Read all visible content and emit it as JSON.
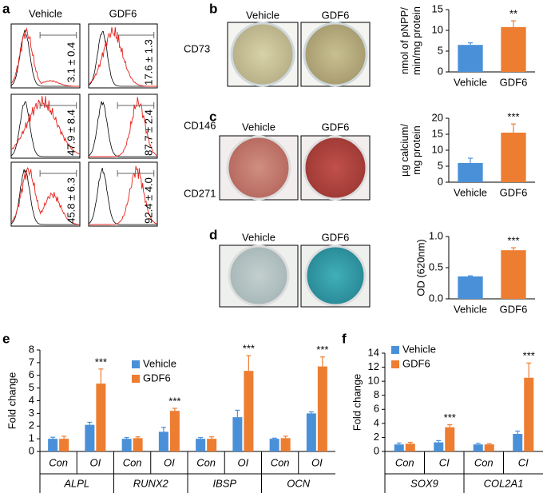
{
  "panel_labels": [
    "a",
    "b",
    "c",
    "d",
    "e",
    "f"
  ],
  "flow": {
    "columns": [
      "Vehicle",
      "GDF6"
    ],
    "markers": [
      "CD73",
      "CD146",
      "CD271"
    ],
    "values": [
      [
        "3.1 ± 0.4",
        "17.6 ± 1.3"
      ],
      [
        "47.9 ± 8.4",
        "87.7 ± 2.4"
      ],
      [
        "45.8 ± 6.3",
        "92.4 ± 4.0"
      ]
    ]
  },
  "stain_labels": [
    [
      "Vehicle",
      "GDF6"
    ],
    [
      "Vehicle",
      "GDF6"
    ],
    [
      "Vehicle",
      "GDF6"
    ]
  ],
  "chart_data": [
    {
      "type": "bar",
      "y_label": [
        "nmol of pNPP/",
        "min/mg protein"
      ],
      "categories": [
        "Vehicle",
        "GDF6"
      ],
      "values": [
        6.5,
        10.8
      ],
      "errors": [
        0.5,
        1.5
      ],
      "colors": [
        "#4a90d9",
        "#ed7d31"
      ],
      "significance": [
        {
          "index": 1,
          "label": "**"
        }
      ],
      "ylim": [
        0,
        15
      ],
      "yticks": [
        0,
        5,
        10,
        15
      ]
    },
    {
      "type": "bar",
      "y_label": [
        "µg calcium/",
        "mg protein"
      ],
      "categories": [
        "Vehicle",
        "GDF6"
      ],
      "values": [
        6.0,
        15.5
      ],
      "errors": [
        1.5,
        2.7
      ],
      "colors": [
        "#4a90d9",
        "#ed7d31"
      ],
      "significance": [
        {
          "index": 1,
          "label": "***"
        }
      ],
      "ylim": [
        0,
        20
      ],
      "yticks": [
        0,
        5,
        10,
        15,
        20
      ]
    },
    {
      "type": "bar",
      "y_label": [
        "OD (620nm)"
      ],
      "categories": [
        "Vehicle",
        "GDF6"
      ],
      "values": [
        0.36,
        0.78
      ],
      "errors": [
        0.01,
        0.04
      ],
      "colors": [
        "#4a90d9",
        "#ed7d31"
      ],
      "significance": [
        {
          "index": 1,
          "label": "***"
        }
      ],
      "ylim": [
        0,
        1
      ],
      "yticks": [
        {
          "value": 0,
          "label": "0.0"
        },
        {
          "value": 0.5,
          "label": "0.5"
        },
        {
          "value": 1,
          "label": "1.0"
        }
      ]
    },
    {
      "type": "grouped_bar",
      "y_label": [
        "Fold change"
      ],
      "categories": [
        "Con",
        "OI",
        "Con",
        "OI",
        "Con",
        "OI",
        "Con",
        "OI"
      ],
      "groups": [
        "ALPL",
        "RUNX2",
        "IBSP",
        "OCN"
      ],
      "series": [
        {
          "name": "Vehicle",
          "color": "#4a90d9",
          "values": [
            1.0,
            2.1,
            1.0,
            1.55,
            1.0,
            2.7,
            1.0,
            3.0
          ],
          "errors": [
            0.12,
            0.2,
            0.1,
            0.35,
            0.1,
            0.55,
            0.05,
            0.12
          ]
        },
        {
          "name": "GDF6",
          "color": "#ed7d31",
          "values": [
            1.0,
            5.35,
            1.05,
            3.2,
            1.0,
            6.35,
            1.05,
            6.7
          ],
          "errors": [
            0.2,
            1.15,
            0.1,
            0.2,
            0.15,
            1.2,
            0.15,
            0.75
          ]
        }
      ],
      "significance": [
        {
          "series": 1,
          "index": 1,
          "label": "***"
        },
        {
          "series": 1,
          "index": 3,
          "label": "***"
        },
        {
          "series": 1,
          "index": 5,
          "label": "***"
        },
        {
          "series": 1,
          "index": 7,
          "label": "***"
        }
      ],
      "ylim": [
        0,
        8
      ],
      "yticks": [
        0,
        1,
        2,
        3,
        4,
        5,
        6,
        7,
        8
      ]
    },
    {
      "type": "grouped_bar",
      "y_label": [
        "Fold change"
      ],
      "categories": [
        "Con",
        "CI",
        "Con",
        "CI"
      ],
      "groups": [
        "SOX9",
        "COL2A1"
      ],
      "series": [
        {
          "name": "Vehicle",
          "color": "#4a90d9",
          "values": [
            1.0,
            1.3,
            1.0,
            2.5
          ],
          "errors": [
            0.2,
            0.25,
            0.15,
            0.4
          ]
        },
        {
          "name": "GDF6",
          "color": "#ed7d31",
          "values": [
            1.1,
            3.45,
            1.0,
            10.5
          ],
          "errors": [
            0.2,
            0.35,
            0.1,
            2.1
          ]
        }
      ],
      "significance": [
        {
          "series": 1,
          "index": 1,
          "label": "***"
        },
        {
          "series": 1,
          "index": 3,
          "label": "***"
        }
      ],
      "ylim": [
        0,
        14
      ],
      "yticks": [
        0,
        2,
        4,
        6,
        8,
        10,
        12,
        14
      ]
    }
  ]
}
